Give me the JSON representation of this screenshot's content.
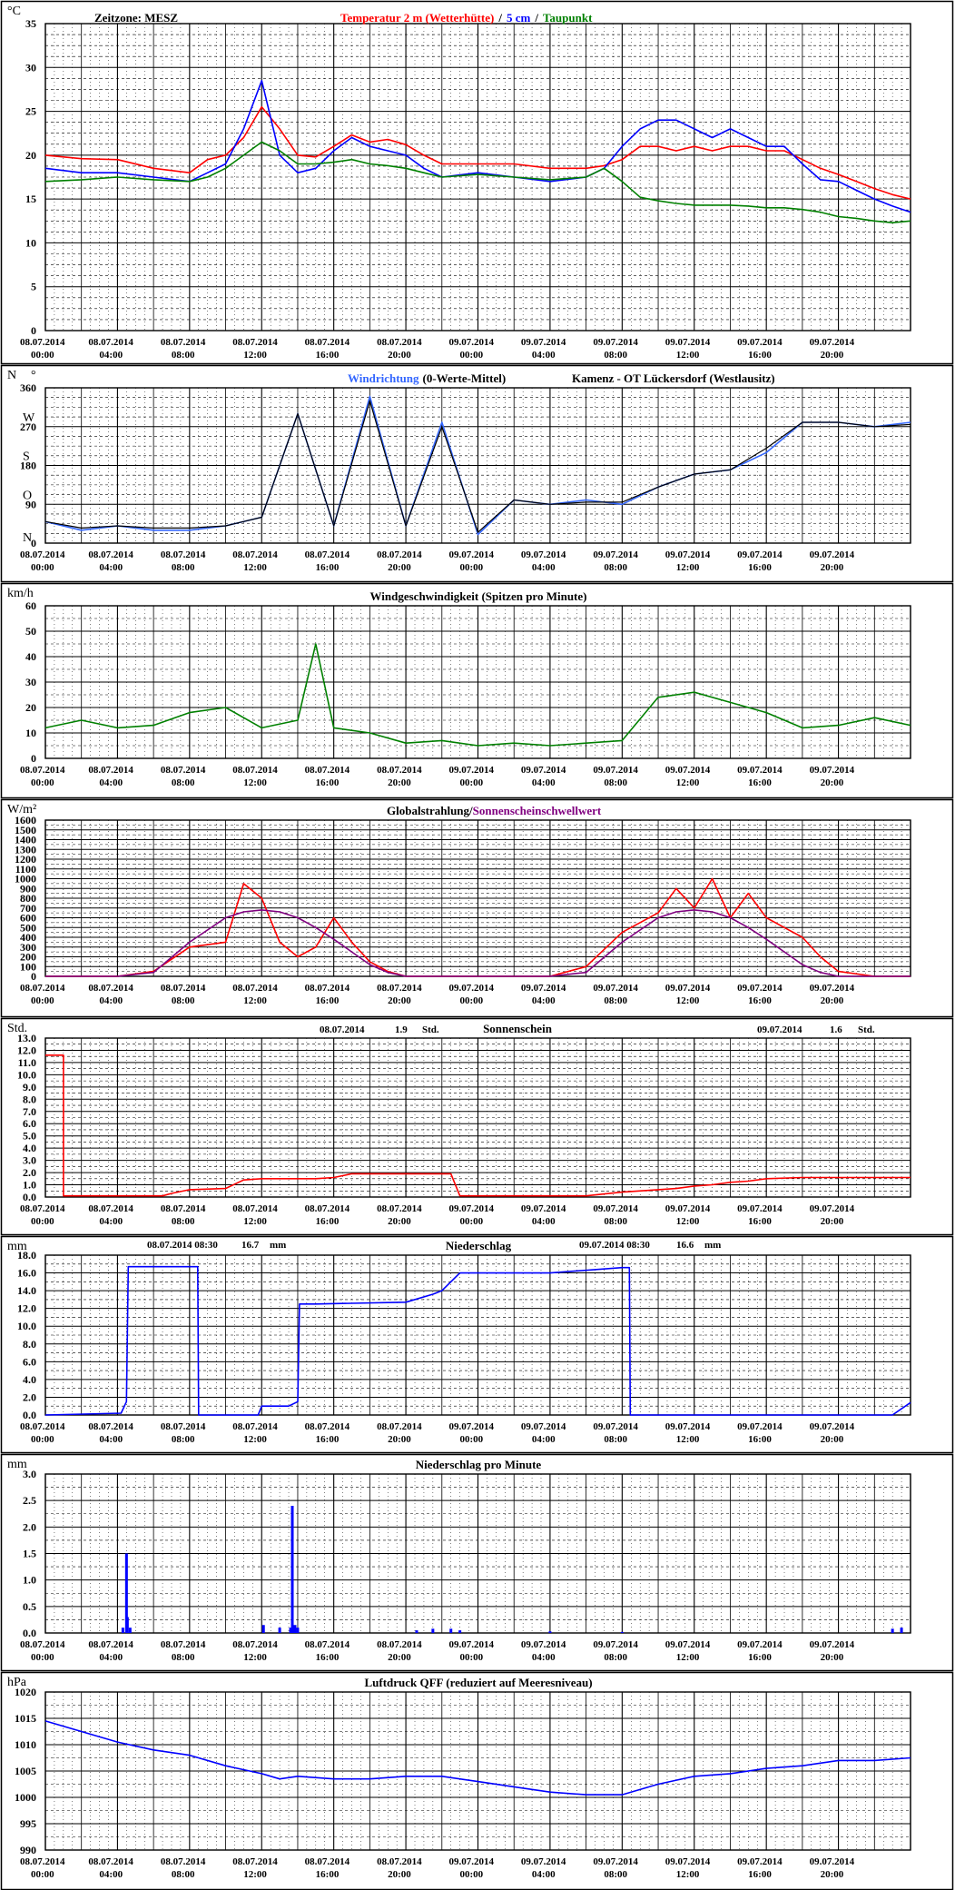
{
  "x_ticks": [
    [
      "08.07.2014",
      "00:00"
    ],
    [
      "08.07.2014",
      "04:00"
    ],
    [
      "08.07.2014",
      "08:00"
    ],
    [
      "08.07.2014",
      "12:00"
    ],
    [
      "08.07.2014",
      "16:00"
    ],
    [
      "08.07.2014",
      "20:00"
    ],
    [
      "09.07.2014",
      "00:00"
    ],
    [
      "09.07.2014",
      "04:00"
    ],
    [
      "09.07.2014",
      "08:00"
    ],
    [
      "09.07.2014",
      "12:00"
    ],
    [
      "09.07.2014",
      "16:00"
    ],
    [
      "09.07.2014",
      "20:00"
    ]
  ],
  "chart_data": [
    {
      "id": "temperature",
      "type": "line",
      "unit": "°C",
      "timezone_label": "Zeitzone: MESZ",
      "title_parts": [
        {
          "text": "Temperatur 2 m (Wetterhütte)",
          "color": "#ff0000"
        },
        {
          "text": "/",
          "color": "#000000"
        },
        {
          "text": "5 cm",
          "color": "#0000ff"
        },
        {
          "text": "/",
          "color": "#000000"
        },
        {
          "text": "Taupunkt",
          "color": "#008000"
        }
      ],
      "xlabel": "",
      "ylabel": "°C",
      "ylim": [
        0,
        35
      ],
      "y_ticks": [
        "0",
        "5",
        "10",
        "15",
        "20",
        "25",
        "30",
        "35"
      ],
      "x_hours": [
        0,
        2,
        4,
        6,
        8,
        9,
        10,
        11,
        12,
        13,
        14,
        15,
        16,
        17,
        18,
        19,
        20,
        21,
        22,
        24,
        26,
        28,
        30,
        31,
        32,
        33,
        34,
        35,
        36,
        37,
        38,
        39,
        40,
        41,
        42,
        43,
        44,
        45,
        46,
        47,
        48
      ],
      "series": [
        {
          "name": "Temperatur 2 m (Wetterhütte)",
          "color": "#ff0000",
          "values": [
            20,
            19.6,
            19.5,
            18.5,
            18,
            19.5,
            20,
            22,
            25.5,
            23,
            20,
            19.8,
            21,
            22.3,
            21.5,
            21.8,
            21.2,
            20,
            19,
            19,
            19,
            18.5,
            18.5,
            18.8,
            19.5,
            21,
            21,
            20.5,
            21,
            20.5,
            21,
            21,
            20.5,
            20.5,
            19.5,
            18.5,
            17.8,
            17,
            16.2,
            15.5,
            15
          ]
        },
        {
          "name": "5 cm",
          "color": "#0000ff",
          "values": [
            18.5,
            18,
            18,
            17.5,
            17,
            18,
            19,
            23,
            28.5,
            20,
            18,
            18.5,
            20.5,
            22,
            21,
            20.5,
            20,
            18.5,
            17.5,
            18,
            17.5,
            17,
            17.5,
            18.5,
            21,
            23,
            24,
            24,
            23,
            22,
            23,
            22,
            21,
            21,
            19,
            17.2,
            17,
            16,
            15,
            14.2,
            13.5
          ]
        },
        {
          "name": "Taupunkt",
          "color": "#008000",
          "values": [
            17,
            17.2,
            17.5,
            17.2,
            17,
            17.5,
            18.5,
            20,
            21.5,
            20.5,
            19,
            19,
            19.2,
            19.5,
            19,
            18.8,
            18.5,
            18,
            17.5,
            17.8,
            17.5,
            17.2,
            17.5,
            18.5,
            17,
            15.2,
            14.8,
            14.5,
            14.3,
            14.3,
            14.3,
            14.2,
            14,
            14,
            13.8,
            13.5,
            13,
            12.8,
            12.5,
            12.3,
            12.5
          ]
        }
      ]
    },
    {
      "id": "wind_direction",
      "type": "line",
      "unit": "N °",
      "title": "Windrichtung (0-Werte-Mittel)",
      "title_blue": "Windrichtung",
      "title_black": "(0-Werte-Mittel)",
      "station": "Kamenz - OT Lückersdorf (Westlausitz)",
      "ylabel": "N °",
      "ylim": [
        0,
        360
      ],
      "y_ticks": [
        [
          "0",
          "N"
        ],
        [
          "90",
          "O"
        ],
        [
          "180",
          "S"
        ],
        [
          "270",
          "W"
        ],
        [
          "360",
          "N"
        ]
      ],
      "x_hours": [
        0,
        2,
        4,
        6,
        8,
        10,
        12,
        14,
        16,
        18,
        20,
        22,
        24,
        26,
        28,
        30,
        32,
        34,
        36,
        38,
        40,
        42,
        44,
        46,
        48
      ],
      "series": [
        {
          "name": "Windrichtung",
          "color": "#3366ff",
          "values": [
            50,
            30,
            40,
            30,
            30,
            40,
            60,
            300,
            40,
            340,
            40,
            280,
            20,
            100,
            90,
            100,
            90,
            130,
            160,
            170,
            210,
            280,
            280,
            270,
            280
          ]
        },
        {
          "name": "Mittel",
          "color": "#000000",
          "values": [
            50,
            35,
            40,
            35,
            35,
            40,
            60,
            300,
            40,
            330,
            40,
            270,
            25,
            100,
            90,
            95,
            95,
            130,
            160,
            170,
            220,
            280,
            280,
            270,
            275
          ]
        }
      ]
    },
    {
      "id": "wind_speed",
      "type": "line",
      "unit": "km/h",
      "title": "Windgeschwindigkeit (Spitzen pro Minute)",
      "ylabel": "km/h",
      "ylim": [
        0,
        60
      ],
      "y_ticks": [
        "0",
        "10",
        "20",
        "30",
        "40",
        "50",
        "60"
      ],
      "x_hours": [
        0,
        2,
        4,
        6,
        8,
        10,
        12,
        14,
        15,
        16,
        18,
        20,
        22,
        24,
        26,
        28,
        30,
        32,
        34,
        36,
        38,
        40,
        42,
        44,
        46,
        48
      ],
      "series": [
        {
          "name": "Windgeschwindigkeit",
          "color": "#008000",
          "values": [
            12,
            15,
            12,
            13,
            18,
            20,
            12,
            15,
            45,
            12,
            10,
            6,
            7,
            5,
            6,
            5,
            6,
            7,
            24,
            26,
            22,
            18,
            12,
            13,
            16,
            13
          ]
        }
      ]
    },
    {
      "id": "global_radiation",
      "type": "line",
      "unit": "W/m²",
      "title_parts": [
        {
          "text": "Globalstrahlung/",
          "color": "#000000"
        },
        {
          "text": "Sonnenscheinschwellwert",
          "color": "#800080"
        }
      ],
      "ylabel": "W/m²",
      "ylim": [
        0,
        1600
      ],
      "y_ticks": [
        "0",
        "100",
        "200",
        "300",
        "400",
        "500",
        "600",
        "700",
        "800",
        "900",
        "1000",
        "1100",
        "1200",
        "1300",
        "1400",
        "1500",
        "1600"
      ],
      "x_hours": [
        0,
        4,
        6,
        8,
        10,
        11,
        12,
        13,
        14,
        15,
        16,
        17,
        18,
        19,
        20,
        24,
        28,
        30,
        32,
        34,
        35,
        36,
        37,
        38,
        39,
        40,
        41,
        42,
        43,
        44,
        46,
        48
      ],
      "series": [
        {
          "name": "Globalstrahlung",
          "color": "#ff0000",
          "values": [
            0,
            0,
            50,
            300,
            350,
            950,
            800,
            350,
            200,
            300,
            600,
            350,
            150,
            50,
            0,
            0,
            0,
            100,
            450,
            650,
            900,
            700,
            1000,
            600,
            850,
            600,
            500,
            400,
            200,
            50,
            0,
            0
          ]
        },
        {
          "name": "Sonnenscheinschwellwert",
          "color": "#800080",
          "values": [
            0,
            0,
            40,
            350,
            600,
            660,
            680,
            660,
            600,
            500,
            380,
            250,
            120,
            40,
            0,
            0,
            0,
            40,
            350,
            600,
            660,
            680,
            660,
            600,
            500,
            380,
            250,
            120,
            40,
            0,
            0,
            0
          ]
        }
      ]
    },
    {
      "id": "sunshine",
      "type": "line",
      "unit": "Std.",
      "title": "Sonnenschein",
      "annotations": [
        {
          "date": "08.07.2014",
          "value": "1.9",
          "unit": "Std."
        },
        {
          "date": "09.07.2014",
          "value": "1.6",
          "unit": "Std."
        }
      ],
      "ylabel": "Std.",
      "ylim": [
        0,
        13
      ],
      "y_ticks": [
        "0.0",
        "1.0",
        "2.0",
        "3.0",
        "4.0",
        "5.0",
        "6.0",
        "7.0",
        "8.0",
        "9.0",
        "10.0",
        "11.0",
        "12.0",
        "13.0"
      ],
      "x_hours": [
        0,
        1,
        1,
        6.5,
        7,
        8,
        10,
        11,
        12,
        15,
        16,
        17,
        20,
        22,
        22.5,
        23,
        24,
        30,
        32,
        34,
        35,
        36,
        37,
        38,
        39,
        40,
        42,
        44,
        46,
        48
      ],
      "series": [
        {
          "name": "Sonnenschein",
          "color": "#ff0000",
          "values": [
            11.6,
            11.6,
            0.1,
            0.1,
            0.3,
            0.6,
            0.7,
            1.4,
            1.5,
            1.5,
            1.6,
            1.9,
            1.9,
            1.9,
            1.9,
            0.1,
            0.1,
            0.1,
            0.4,
            0.6,
            0.7,
            0.9,
            1.0,
            1.2,
            1.3,
            1.5,
            1.6,
            1.6,
            1.6,
            1.6
          ]
        }
      ]
    },
    {
      "id": "precipitation",
      "type": "line",
      "unit": "mm",
      "title": "Niederschlag",
      "annotations": [
        {
          "datetime": "08.07.2014 08:30",
          "value": "16.7",
          "unit": "mm"
        },
        {
          "datetime": "09.07.2014 08:30",
          "value": "16.6",
          "unit": "mm"
        }
      ],
      "ylabel": "mm",
      "ylim": [
        0,
        18
      ],
      "y_ticks": [
        "0.0",
        "2.0",
        "4.0",
        "6.0",
        "8.0",
        "10.0",
        "12.0",
        "14.0",
        "16.0",
        "18.0"
      ],
      "x_hours": [
        0,
        4.2,
        4.5,
        4.6,
        8.45,
        8.5,
        11.8,
        12,
        13.5,
        14,
        14.1,
        15,
        20,
        21.5,
        22,
        23,
        24,
        28,
        32,
        32.4,
        32.45,
        47,
        48
      ],
      "series": [
        {
          "name": "Niederschlag",
          "color": "#0000ff",
          "values": [
            0,
            0.2,
            1.5,
            16.7,
            16.7,
            0,
            0,
            1.0,
            1.0,
            1.5,
            12.5,
            12.5,
            12.7,
            13.6,
            14,
            16,
            16,
            16,
            16.6,
            16.6,
            0,
            0,
            1.4
          ]
        }
      ]
    },
    {
      "id": "precipitation_per_minute",
      "type": "bar",
      "unit": "mm",
      "title": "Niederschlag pro Minute",
      "ylabel": "mm",
      "ylim": [
        0,
        3.0
      ],
      "y_ticks": [
        "0.0",
        "0.5",
        "1.0",
        "1.5",
        "2.0",
        "2.5",
        "3.0"
      ],
      "x_hours": [
        4.3,
        4.5,
        4.55,
        4.7,
        12.1,
        13.0,
        13.6,
        13.7,
        13.85,
        14.0,
        20.6,
        21.5,
        22.5,
        23.0,
        28.0,
        32.0,
        47.0,
        47.5
      ],
      "series": [
        {
          "name": "Niederschlag pro Minute",
          "color": "#0000ff",
          "values": [
            0.1,
            1.5,
            0.3,
            0.1,
            0.15,
            0.1,
            0.1,
            2.4,
            0.15,
            0.1,
            0.05,
            0.08,
            0.08,
            0.05,
            0.03,
            0.02,
            0.08,
            0.1
          ]
        }
      ]
    },
    {
      "id": "air_pressure",
      "type": "line",
      "unit": "hPa",
      "title": "Luftdruck QFF (reduziert auf Meeresniveau)",
      "ylabel": "hPa",
      "ylim": [
        990,
        1020
      ],
      "y_ticks": [
        "990",
        "995",
        "1000",
        "1005",
        "1010",
        "1015",
        "1020"
      ],
      "x_hours": [
        0,
        2,
        4,
        6,
        8,
        10,
        12,
        13,
        14,
        16,
        18,
        20,
        22,
        24,
        26,
        28,
        30,
        32,
        34,
        36,
        38,
        40,
        42,
        44,
        46,
        48
      ],
      "series": [
        {
          "name": "Luftdruck",
          "color": "#0000ff",
          "values": [
            1014.5,
            1012.5,
            1010.5,
            1009,
            1008,
            1006,
            1004.5,
            1003.5,
            1004,
            1003.5,
            1003.5,
            1004,
            1004,
            1003,
            1002,
            1001,
            1000.5,
            1000.5,
            1002.5,
            1004,
            1004.5,
            1005.5,
            1006,
            1007,
            1007,
            1007.5
          ]
        }
      ]
    }
  ]
}
